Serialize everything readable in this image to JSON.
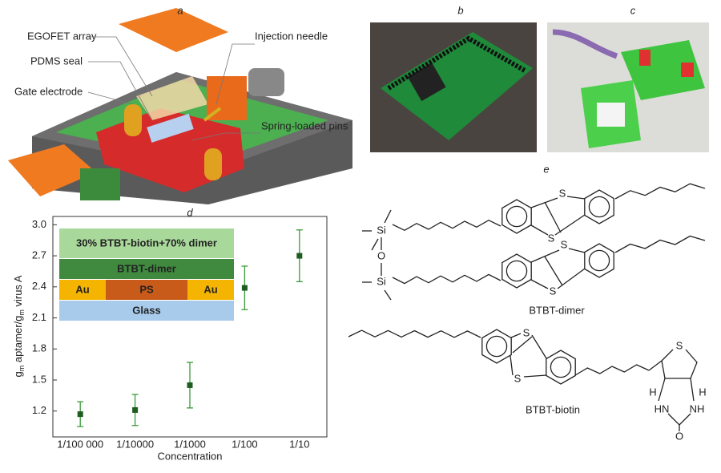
{
  "panels": {
    "a": "a",
    "b": "b",
    "c": "c",
    "d": "d",
    "e": "e"
  },
  "device_labels": [
    "EGOFET array",
    "PDMS seal",
    "Gate electrode",
    "Injection needle",
    "Spring-loaded pins"
  ],
  "structures": {
    "dimer": {
      "name": "BTBT-dimer",
      "atoms": [
        "S",
        "S",
        "S",
        "S",
        "Si",
        "O",
        "Si"
      ]
    },
    "biotin": {
      "name": "BTBT-biotin",
      "atoms": [
        "S",
        "S",
        "S",
        "H",
        "H",
        "HN",
        "NH",
        "O"
      ]
    }
  },
  "chart_data": {
    "type": "scatter",
    "ylabel_parts": [
      "g",
      "m",
      " aptamer/",
      "g",
      "m",
      " virus A"
    ],
    "xlabel": "Concentration",
    "categories": [
      "1/100 000",
      "1/10000",
      "1/1000",
      "1/100",
      "1/10"
    ],
    "values": [
      1.17,
      1.21,
      1.45,
      2.39,
      2.7
    ],
    "errors": [
      0.12,
      0.15,
      0.22,
      0.21,
      0.25
    ],
    "color": "#1f5c1f",
    "error_color": "#3a9a3a",
    "ylim": [
      0.95,
      3.08
    ],
    "yticks": [
      {
        "value": 1.2,
        "label": "1.2"
      },
      {
        "value": 1.5,
        "label": "1.5"
      },
      {
        "value": 1.8,
        "label": "1.8"
      },
      {
        "value": 2.1,
        "label": "2.1"
      },
      {
        "value": 2.4,
        "label": "2.4"
      },
      {
        "value": 2.7,
        "label": "2.7"
      },
      {
        "value": 3.0,
        "label": "3.0"
      }
    ],
    "inset": {
      "top": "30% BTBT-biotin+70% dimer",
      "middle": "BTBT-dimer",
      "left": "Au",
      "center": "PS",
      "right": "Au",
      "bottom": "Glass"
    }
  }
}
